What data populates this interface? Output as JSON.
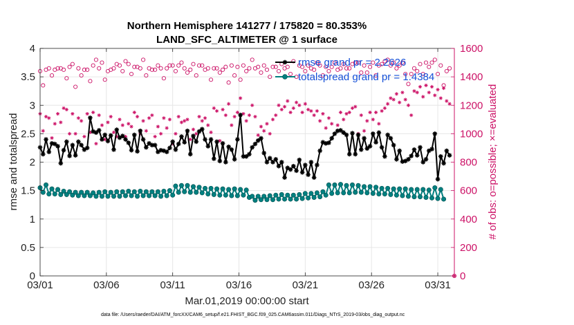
{
  "chart_data": {
    "type": "line",
    "title": "Northern Hemisphere 141277 / 175820 = 80.353%",
    "subtitle": "LAND_SFC_ALTIMETER @ 1 surface",
    "xlabel": "Mar.01,2019 00:00:00 start",
    "ylabel": "rmse and totalspread",
    "ylabel_right": "# of obs: o=possible; ×=evaluated",
    "footnote": "data file: /Users/raeder/DAI/ATM_forcXX/CAM6_setup/f.e21.FHIST_BGC.f09_025.CAM6assim.011/Diags_NTrS_2019-03/obs_diag_output.nc",
    "x_range": [
      0,
      31.25
    ],
    "ylim": [
      0,
      4
    ],
    "ylim_right": [
      0,
      1600
    ],
    "x_ticks": [
      0,
      5,
      10,
      15,
      20,
      25,
      30
    ],
    "x_tick_labels": [
      "03/01",
      "03/06",
      "03/11",
      "03/16",
      "03/21",
      "03/26",
      "03/31"
    ],
    "y_ticks": [
      0,
      0.5,
      1,
      1.5,
      2,
      2.5,
      3,
      3.5,
      4
    ],
    "y_tick_labels": [
      "0",
      "0.5",
      "1",
      "1.5",
      "2",
      "2.5",
      "3",
      "3.5",
      "4"
    ],
    "y_right_ticks": [
      0,
      200,
      400,
      600,
      800,
      1000,
      1200,
      1400,
      1600
    ],
    "y_right_tick_labels": [
      "0",
      "200",
      "400",
      "600",
      "800",
      "1000",
      "1200",
      "1400",
      "1600"
    ],
    "legend_position": "top-right",
    "colors": {
      "rmse": "#000000",
      "totalspread": "#008080",
      "obs": "#cc1166",
      "legend_text": "#1550d8",
      "grid": "#e6e6e6"
    },
    "series": [
      {
        "name": "rmse grand pr = 2.2626",
        "axis": "left",
        "marker": "star",
        "values": [
          2.26,
          2.14,
          2.4,
          2.18,
          2.33,
          2.32,
          2.28,
          1.98,
          2.21,
          2.36,
          2.11,
          2.3,
          2.12,
          2.36,
          2.3,
          2.22,
          2.25,
          2.78,
          2.54,
          2.52,
          2.56,
          2.4,
          2.48,
          2.37,
          2.47,
          2.22,
          2.57,
          2.43,
          2.46,
          2.4,
          2.34,
          2.21,
          2.48,
          2.19,
          2.55,
          2.4,
          2.26,
          2.33,
          2.3,
          2.3,
          2.18,
          2.21,
          2.2,
          2.18,
          2.25,
          2.36,
          2.22,
          2.32,
          2.45,
          2.35,
          2.55,
          2.14,
          2.46,
          2.36,
          2.54,
          2.58,
          2.4,
          2.28,
          2.4,
          2.06,
          2.36,
          2.02,
          2.33,
          2.0,
          2.27,
          2.22,
          2.05,
          2.4,
          2.83,
          2.1,
          2.1,
          2.14,
          2.26,
          2.32,
          2.38,
          2.42,
          2.16,
          2.0,
          2.07,
          2.0,
          2.05,
          1.93,
          2.0,
          1.73,
          1.9,
          1.87,
          1.93,
          1.85,
          2.04,
          1.82,
          1.95,
          1.78,
          2.0,
          1.73,
          1.95,
          2.2,
          2.35,
          2.33,
          2.34,
          2.42,
          2.5,
          2.55,
          2.56,
          2.52,
          2.48,
          2.14,
          2.51,
          2.14,
          2.48,
          2.22,
          2.42,
          2.24,
          2.28,
          2.5,
          2.35,
          2.52,
          2.26,
          2.1,
          2.48,
          2.42,
          2.3,
          2.05,
          2.2,
          2.01,
          2.02,
          2.05,
          2.11,
          2.22,
          2.12,
          2.26,
          2.0,
          2.05,
          2.2,
          2.23,
          2.5,
          1.7,
          2.1,
          1.98,
          2.2,
          2.12
        ]
      },
      {
        "name": "totalspread grand pr = 1.4384",
        "axis": "left",
        "marker": "filled-circle",
        "values": [
          1.55,
          1.47,
          1.6,
          1.44,
          1.53,
          1.44,
          1.52,
          1.43,
          1.49,
          1.43,
          1.48,
          1.42,
          1.47,
          1.41,
          1.47,
          1.41,
          1.47,
          1.41,
          1.46,
          1.4,
          1.47,
          1.4,
          1.48,
          1.4,
          1.47,
          1.4,
          1.48,
          1.4,
          1.48,
          1.41,
          1.49,
          1.41,
          1.48,
          1.4,
          1.49,
          1.41,
          1.48,
          1.41,
          1.48,
          1.41,
          1.48,
          1.4,
          1.49,
          1.41,
          1.5,
          1.42,
          1.58,
          1.47,
          1.59,
          1.48,
          1.59,
          1.47,
          1.57,
          1.47,
          1.56,
          1.46,
          1.54,
          1.44,
          1.54,
          1.43,
          1.53,
          1.42,
          1.53,
          1.42,
          1.52,
          1.41,
          1.53,
          1.41,
          1.52,
          1.42,
          1.51,
          1.38,
          1.4,
          1.33,
          1.4,
          1.34,
          1.4,
          1.34,
          1.41,
          1.34,
          1.42,
          1.35,
          1.43,
          1.35,
          1.42,
          1.35,
          1.42,
          1.35,
          1.43,
          1.36,
          1.45,
          1.37,
          1.45,
          1.38,
          1.46,
          1.39,
          1.48,
          1.42,
          1.6,
          1.45,
          1.6,
          1.46,
          1.61,
          1.46,
          1.59,
          1.46,
          1.6,
          1.47,
          1.59,
          1.47,
          1.57,
          1.46,
          1.57,
          1.45,
          1.56,
          1.44,
          1.54,
          1.44,
          1.54,
          1.43,
          1.53,
          1.42,
          1.53,
          1.41,
          1.53,
          1.4,
          1.52,
          1.39,
          1.52,
          1.39,
          1.52,
          1.38,
          1.51,
          1.37,
          1.55,
          1.36,
          1.52,
          1.35
        ]
      },
      {
        "name": "# of obs possible",
        "axis": "right",
        "marker": "open-circle",
        "values": [
          1440,
          1340,
          1450,
          1460,
          1410,
          1450,
          1460,
          1460,
          1450,
          1390,
          1470,
          1490,
          1330,
          1460,
          1410,
          1450,
          1450,
          1370,
          1480,
          1520,
          1460,
          1500,
          1380,
          1440,
          1450,
          1460,
          1490,
          1480,
          1440,
          1510,
          1490,
          1420,
          1470,
          1470,
          1460,
          1520,
          1410,
          1460,
          1450,
          1450,
          1480,
          1460,
          1390,
          1460,
          1480,
          1480,
          1440,
          1480,
          1500,
          1460,
          1430,
          1450,
          1490,
          1410,
          1480,
          1480,
          1450,
          1460,
          1380,
          1460,
          1460,
          1430,
          1450,
          1470,
          1360,
          1480,
          1410,
          1470,
          1380,
          1480,
          1440,
          1460,
          1520,
          1460,
          1470,
          1430,
          1480,
          1450,
          1400,
          1470,
          1470,
          1440,
          1490,
          1460,
          1470,
          1420,
          1510,
          1400,
          1480,
          1470,
          1440,
          1480,
          1460,
          1450,
          1500,
          1480,
          1410,
          1470,
          1440,
          1470,
          1500,
          1450,
          1460,
          1490,
          1460,
          1460,
          1490,
          1500,
          1500,
          1430,
          1480,
          1430,
          1470,
          1500,
          1410,
          1480,
          1490,
          1510,
          1520,
          1480,
          1500,
          1460,
          1480,
          1500,
          1420,
          1350,
          1420,
          1460,
          1440,
          1490,
          1420,
          1500,
          1470,
          1500,
          1520,
          1420,
          1480,
          1340,
          1440,
          1460
        ]
      },
      {
        "name": "# of obs evaluated",
        "axis": "right",
        "marker": "asterisk",
        "values": [
          1140,
          1020,
          1120,
          1110,
          970,
          1070,
          1140,
          1080,
          1180,
          1170,
          1000,
          1140,
          1000,
          1110,
          1090,
          980,
          1140,
          1010,
          1150,
          930,
          1130,
          1060,
          960,
          1080,
          1120,
          1010,
          980,
          1100,
          1060,
          980,
          1070,
          1050,
          1150,
          1120,
          1000,
          1090,
          1020,
          1110,
          1130,
          980,
          1050,
          1000,
          1110,
          1040,
          1100,
          930,
          1000,
          1120,
          1080,
          1090,
          1100,
          960,
          1030,
          1000,
          1120,
          1090,
          1110,
          1060,
          1010,
          1180,
          1160,
          950,
          1170,
          1130,
          1210,
          1060,
          1120,
          1150,
          1250,
          1140,
          1090,
          1130,
          1200,
          1120,
          990,
          1050,
          1020,
          1070,
          1000,
          1100,
          1130,
          1200,
          1170,
          1190,
          1230,
          1150,
          1180,
          1220,
          1200,
          1150,
          1210,
          1170,
          1160,
          1130,
          1160,
          1090,
          1140,
          1040,
          1110,
          1070,
          1000,
          1060,
          1150,
          1100,
          1140,
          1150,
          1180,
          1190,
          1000,
          1130,
          1020,
          1090,
          1150,
          1100,
          1150,
          1070,
          1160,
          1180,
          1210,
          1250,
          1240,
          1280,
          1220,
          1290,
          1240,
          1200,
          1130,
          1300,
          1290,
          1330,
          1260,
          1340,
          1290,
          1330,
          1270,
          1310,
          1250,
          1320,
          1230,
          1210
        ]
      }
    ]
  }
}
